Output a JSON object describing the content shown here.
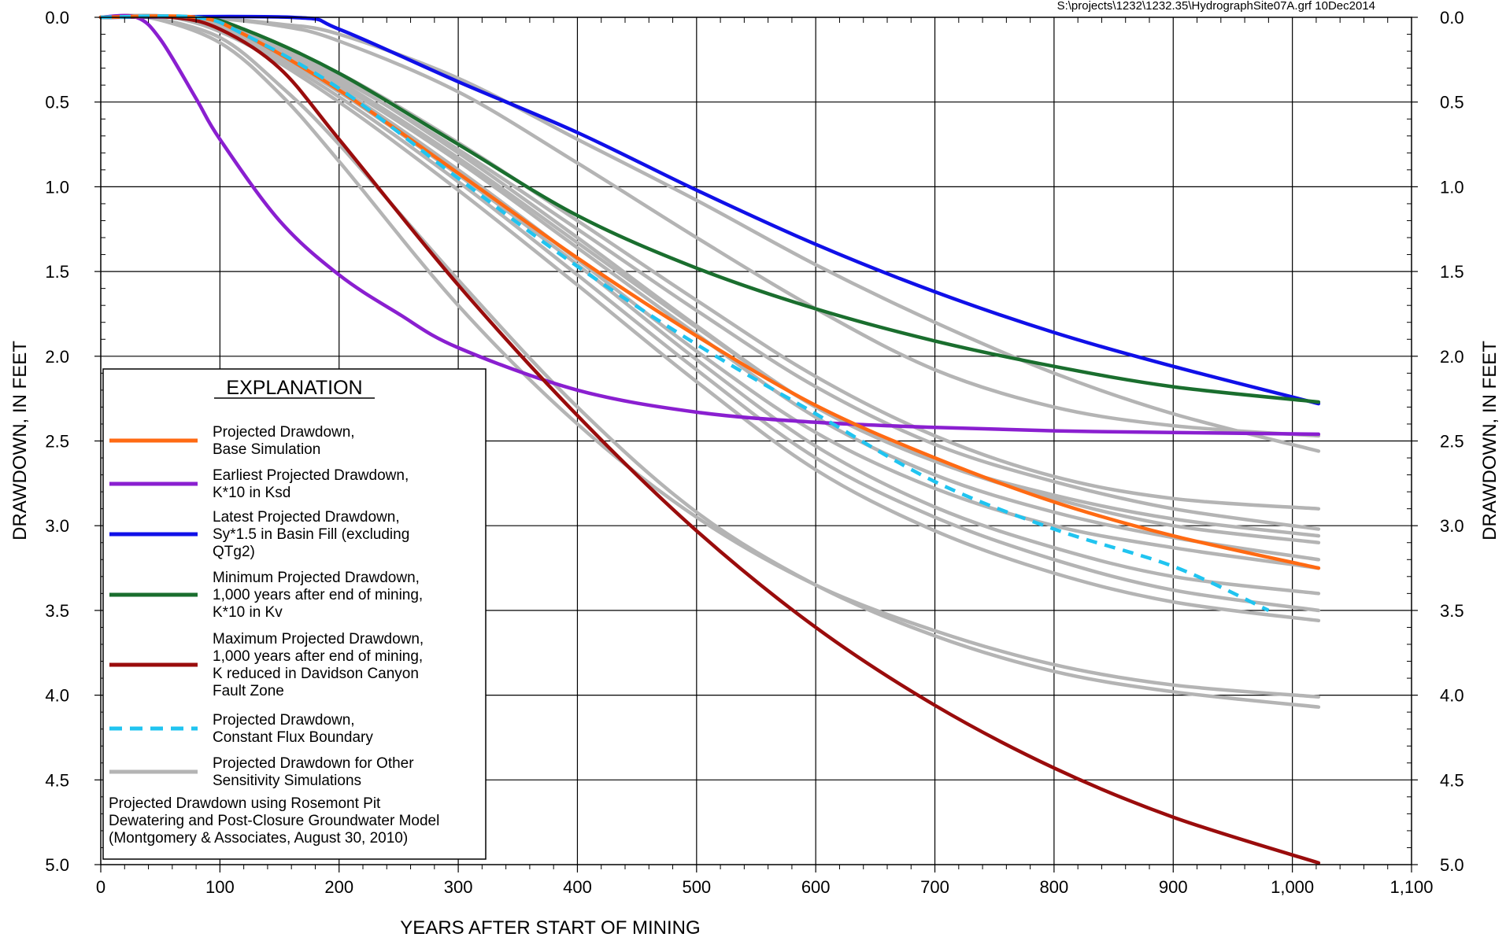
{
  "chart_data": {
    "type": "line",
    "file_label": "S:\\projects\\1232\\1232.35\\HydrographSite07A.grf 10Dec2014",
    "xlabel": "YEARS AFTER START OF MINING",
    "ylabel_left": "DRAWDOWN, IN FEET",
    "ylabel_right": "DRAWDOWN, IN FEET",
    "xlim": [
      0,
      1100
    ],
    "ylim": [
      0,
      5
    ],
    "y_inverted": true,
    "grid": true,
    "x_ticks": [
      "0",
      "100",
      "200",
      "300",
      "400",
      "500",
      "600",
      "700",
      "800",
      "900",
      "1,000",
      "1,100"
    ],
    "x_tick_values": [
      0,
      100,
      200,
      300,
      400,
      500,
      600,
      700,
      800,
      900,
      1000,
      1100
    ],
    "y_ticks": [
      "0.0",
      "0.5",
      "1.0",
      "1.5",
      "2.0",
      "2.5",
      "3.0",
      "3.5",
      "4.0",
      "4.5",
      "5.0"
    ],
    "y_tick_values": [
      0,
      0.5,
      1,
      1.5,
      2,
      2.5,
      3,
      3.5,
      4,
      4.5,
      5
    ],
    "legend": {
      "title": "EXPLANATION",
      "position": "lower-left",
      "entries": [
        {
          "key": "base",
          "lines": [
            "Projected Drawdown,",
            "Base Simulation"
          ]
        },
        {
          "key": "earliest",
          "lines": [
            "Earliest Projected Drawdown,",
            "K*10 in Ksd"
          ]
        },
        {
          "key": "latest",
          "lines": [
            "Latest Projected Drawdown,",
            "Sy*1.5 in Basin Fill (excluding",
            "QTg2)"
          ]
        },
        {
          "key": "minimum",
          "lines": [
            "Minimum Projected Drawdown,",
            "1,000 years after end of mining,",
            "K*10 in Kv"
          ]
        },
        {
          "key": "maximum",
          "lines": [
            "Maximum Projected Drawdown,",
            "1,000 years after end of mining,",
            "K reduced in Davidson Canyon",
            "Fault Zone"
          ]
        },
        {
          "key": "constant_flux",
          "lines": [
            "Projected Drawdown,",
            "Constant Flux Boundary"
          ]
        },
        {
          "key": "other",
          "lines": [
            "Projected Drawdown for Other",
            "Sensitivity Simulations"
          ]
        }
      ],
      "note": [
        "Projected Drawdown using Rosemont Pit",
        "Dewatering and Post-Closure Groundwater Model",
        "(Montgomery & Associates, August 30, 2010)"
      ]
    },
    "colors": {
      "base": "#ff6a13",
      "earliest": "#8a1fd0",
      "latest": "#1010e8",
      "minimum": "#1a6e2e",
      "maximum": "#9a0c0c",
      "constant_flux": "#20c4f0",
      "other": "#b4b4b4",
      "grid": "#000000"
    },
    "series": [
      {
        "key": "other",
        "x": [
          0,
          60,
          120,
          200,
          300,
          400,
          500,
          600,
          700,
          800,
          900,
          1022
        ],
        "y": [
          0,
          0,
          0.08,
          0.35,
          0.8,
          1.3,
          1.82,
          2.3,
          2.62,
          2.84,
          3.0,
          3.1
        ]
      },
      {
        "key": "other",
        "x": [
          0,
          60,
          120,
          200,
          300,
          400,
          500,
          600,
          700,
          800,
          900,
          1022
        ],
        "y": [
          0,
          0,
          0.1,
          0.38,
          0.83,
          1.33,
          1.83,
          2.3,
          2.62,
          2.82,
          2.96,
          3.06
        ]
      },
      {
        "key": "other",
        "x": [
          0,
          60,
          120,
          200,
          300,
          400,
          500,
          600,
          700,
          800,
          900,
          1022
        ],
        "y": [
          0,
          0,
          0.12,
          0.42,
          0.9,
          1.43,
          1.97,
          2.45,
          2.78,
          3.0,
          3.13,
          3.25
        ]
      },
      {
        "key": "other",
        "x": [
          0,
          60,
          120,
          200,
          300,
          400,
          500,
          600,
          700,
          800,
          900,
          1022
        ],
        "y": [
          0,
          0,
          0.13,
          0.44,
          0.93,
          1.46,
          2.02,
          2.53,
          2.89,
          3.13,
          3.3,
          3.4
        ]
      },
      {
        "key": "other",
        "x": [
          0,
          60,
          120,
          200,
          300,
          400,
          500,
          600,
          700,
          800,
          900,
          1022
        ],
        "y": [
          0,
          0,
          0.14,
          0.47,
          0.97,
          1.52,
          2.08,
          2.6,
          2.95,
          3.2,
          3.38,
          3.5
        ]
      },
      {
        "key": "other",
        "x": [
          0,
          60,
          120,
          200,
          300,
          400,
          500,
          600,
          700,
          800,
          900,
          1022
        ],
        "y": [
          0,
          0,
          0.15,
          0.5,
          1.02,
          1.58,
          2.15,
          2.67,
          3.03,
          3.28,
          3.45,
          3.56
        ]
      },
      {
        "key": "other",
        "x": [
          0,
          60,
          120,
          200,
          300,
          400,
          500,
          600,
          700,
          800,
          900,
          1022
        ],
        "y": [
          0,
          0,
          0.1,
          0.36,
          0.78,
          1.25,
          1.73,
          2.18,
          2.52,
          2.74,
          2.9,
          3.02
        ]
      },
      {
        "key": "other",
        "x": [
          0,
          60,
          120,
          200,
          300,
          400,
          500,
          600,
          700,
          800,
          900,
          1022
        ],
        "y": [
          0,
          0,
          0.12,
          0.4,
          0.85,
          1.36,
          1.87,
          2.36,
          2.7,
          2.92,
          3.07,
          3.2
        ]
      },
      {
        "key": "other",
        "x": [
          0,
          60,
          120,
          200,
          300,
          400,
          500,
          600,
          700,
          800,
          900,
          1022
        ],
        "y": [
          0,
          0,
          0.09,
          0.33,
          0.74,
          1.2,
          1.67,
          2.12,
          2.47,
          2.71,
          2.84,
          2.9
        ]
      },
      {
        "key": "other",
        "x": [
          0,
          80,
          150,
          200,
          300,
          400,
          500,
          600,
          700,
          800,
          900,
          1022
        ],
        "y": [
          0,
          0,
          0.04,
          0.1,
          0.36,
          0.72,
          1.08,
          1.46,
          1.8,
          2.1,
          2.34,
          2.56
        ]
      },
      {
        "key": "other",
        "x": [
          0,
          80,
          150,
          200,
          300,
          400,
          500,
          600,
          700,
          800,
          900,
          1022
        ],
        "y": [
          0,
          0,
          0.05,
          0.14,
          0.44,
          0.86,
          1.3,
          1.72,
          2.08,
          2.3,
          2.41,
          2.47
        ]
      },
      {
        "key": "other",
        "x": [
          0,
          40,
          100,
          150,
          200,
          300,
          400,
          500,
          600,
          700,
          800,
          900,
          1022
        ],
        "y": [
          0,
          0,
          0.15,
          0.45,
          0.85,
          1.7,
          2.4,
          2.95,
          3.35,
          3.62,
          3.82,
          3.94,
          4.01
        ]
      },
      {
        "key": "other",
        "x": [
          0,
          40,
          100,
          150,
          200,
          300,
          400,
          500,
          600,
          700,
          800,
          900,
          1022
        ],
        "y": [
          0,
          0,
          0.12,
          0.4,
          0.75,
          1.55,
          2.3,
          2.92,
          3.35,
          3.65,
          3.86,
          3.98,
          4.07
        ]
      },
      {
        "key": "latest",
        "x": [
          0,
          160,
          200,
          300,
          400,
          500,
          600,
          700,
          800,
          900,
          1022
        ],
        "y": [
          0,
          0,
          0.07,
          0.38,
          0.68,
          1.02,
          1.34,
          1.62,
          1.86,
          2.06,
          2.28
        ]
      },
      {
        "key": "minimum",
        "x": [
          0,
          80,
          120,
          200,
          300,
          400,
          500,
          600,
          700,
          800,
          900,
          1022
        ],
        "y": [
          0,
          0,
          0.07,
          0.33,
          0.75,
          1.17,
          1.48,
          1.72,
          1.91,
          2.06,
          2.18,
          2.27
        ]
      },
      {
        "key": "earliest",
        "x": [
          0,
          30,
          50,
          80,
          100,
          150,
          200,
          250,
          300,
          400,
          500,
          600,
          700,
          800,
          900,
          1022
        ],
        "y": [
          0,
          0,
          0.13,
          0.48,
          0.72,
          1.2,
          1.52,
          1.75,
          1.95,
          2.2,
          2.33,
          2.39,
          2.42,
          2.44,
          2.45,
          2.46
        ]
      },
      {
        "key": "maximum",
        "x": [
          0,
          60,
          100,
          150,
          200,
          300,
          400,
          500,
          600,
          700,
          800,
          900,
          1022
        ],
        "y": [
          0,
          0,
          0.07,
          0.3,
          0.72,
          1.58,
          2.35,
          3.03,
          3.6,
          4.06,
          4.43,
          4.72,
          4.99
        ]
      },
      {
        "key": "base",
        "x": [
          0,
          80,
          120,
          200,
          300,
          400,
          500,
          600,
          700,
          800,
          900,
          1022
        ],
        "y": [
          0,
          0,
          0.1,
          0.43,
          0.92,
          1.42,
          1.88,
          2.29,
          2.6,
          2.86,
          3.06,
          3.25
        ]
      },
      {
        "key": "constant_flux",
        "x": [
          0,
          80,
          120,
          200,
          300,
          400,
          500,
          600,
          700,
          800,
          900,
          980
        ],
        "y": [
          0,
          0,
          0.1,
          0.42,
          0.95,
          1.47,
          1.93,
          2.34,
          2.74,
          3.02,
          3.24,
          3.5
        ]
      }
    ]
  }
}
